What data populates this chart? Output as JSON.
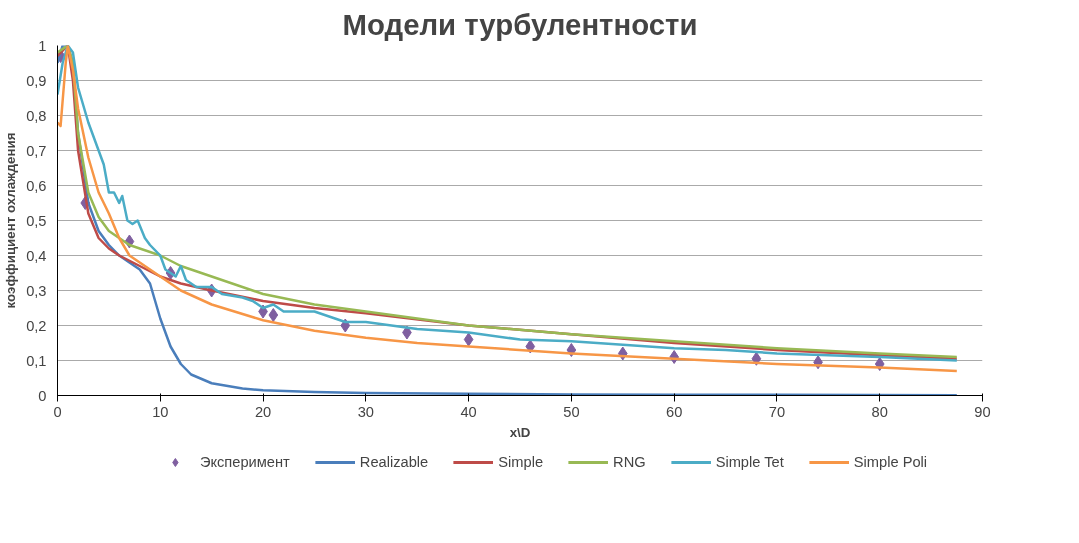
{
  "chart_data": {
    "type": "line",
    "title": "Модели турбулентности",
    "xlabel": "x\\D",
    "ylabel": "коэффициент охлаждения",
    "xlim": [
      0,
      90
    ],
    "xticks": [
      0,
      10,
      20,
      30,
      40,
      50,
      60,
      70,
      80,
      90
    ],
    "ylim": [
      0,
      1
    ],
    "yticks": [
      0,
      {
        "value": 0.1,
        "label": "0,1"
      },
      {
        "value": 0.2,
        "label": "0,2"
      },
      {
        "value": 0.3,
        "label": "0,3"
      },
      {
        "value": 0.4,
        "label": "0,4"
      },
      {
        "value": 0.5,
        "label": "0,5"
      },
      {
        "value": 0.6,
        "label": "0,6"
      },
      {
        "value": 0.7,
        "label": "0,7"
      },
      {
        "value": 0.8,
        "label": "0,8"
      },
      {
        "value": 0.9,
        "label": "0,9"
      },
      1
    ],
    "grid": "y",
    "legend": "bottom",
    "series": [
      {
        "name": "Эксперимент",
        "type": "scatter",
        "marker": "diamond",
        "color": "#7f5fa0",
        "x": [
          0.3,
          2.7,
          7,
          11,
          15,
          20,
          21,
          28,
          34,
          40,
          46,
          50,
          55,
          60,
          68,
          74,
          80
        ],
        "values": [
          0.97,
          0.55,
          0.44,
          0.35,
          0.3,
          0.24,
          0.23,
          0.2,
          0.18,
          0.16,
          0.14,
          0.13,
          0.12,
          0.11,
          0.105,
          0.095,
          0.09
        ]
      },
      {
        "name": "Realizable",
        "type": "line",
        "color": "#4a7ebb",
        "x": [
          0,
          0.5,
          1,
          1.5,
          2,
          3,
          4,
          5,
          6,
          7,
          8,
          9,
          10,
          11,
          12,
          13,
          15,
          18,
          20,
          25,
          30,
          40,
          50,
          60,
          70,
          87.5
        ],
        "values": [
          0.95,
          1,
          1,
          0.95,
          0.75,
          0.55,
          0.47,
          0.43,
          0.4,
          0.38,
          0.36,
          0.32,
          0.22,
          0.14,
          0.09,
          0.06,
          0.035,
          0.02,
          0.015,
          0.01,
          0.007,
          0.005,
          0.003,
          0.002,
          0.002,
          0.001
        ]
      },
      {
        "name": "Simple",
        "type": "line",
        "color": "#be4b48",
        "x": [
          0,
          1,
          1.5,
          2,
          3,
          4,
          5,
          6,
          8,
          10,
          12,
          15,
          20,
          25,
          30,
          40,
          50,
          60,
          70,
          80,
          87.5
        ],
        "values": [
          0.97,
          1,
          0.9,
          0.7,
          0.52,
          0.45,
          0.42,
          0.4,
          0.37,
          0.34,
          0.32,
          0.3,
          0.27,
          0.25,
          0.235,
          0.2,
          0.175,
          0.15,
          0.13,
          0.115,
          0.105
        ]
      },
      {
        "name": "RNG",
        "type": "line",
        "color": "#98b954",
        "x": [
          0,
          1,
          1.5,
          2,
          3,
          4,
          5,
          7,
          10,
          12,
          15,
          20,
          25,
          30,
          40,
          50,
          60,
          70,
          80,
          87.5
        ],
        "values": [
          0.98,
          1,
          0.95,
          0.75,
          0.58,
          0.51,
          0.47,
          0.43,
          0.4,
          0.37,
          0.34,
          0.29,
          0.26,
          0.24,
          0.2,
          0.175,
          0.155,
          0.135,
          0.12,
          0.11
        ]
      },
      {
        "name": "Simple Tet",
        "type": "line",
        "color": "#4bacc6",
        "x": [
          0,
          0.5,
          1,
          1.5,
          2,
          3,
          4,
          4.5,
          5,
          5.5,
          6,
          6.3,
          6.8,
          7.3,
          7.8,
          8.5,
          9,
          10,
          10.5,
          11.5,
          12,
          12.5,
          13.5,
          15,
          16,
          18,
          19,
          20,
          21,
          22,
          25,
          27,
          28,
          30,
          35,
          40,
          45,
          50,
          55,
          60,
          65,
          70,
          80,
          87.5
        ],
        "values": [
          0.86,
          0.95,
          1,
          0.98,
          0.88,
          0.78,
          0.7,
          0.66,
          0.58,
          0.58,
          0.55,
          0.57,
          0.5,
          0.49,
          0.5,
          0.45,
          0.43,
          0.4,
          0.36,
          0.34,
          0.37,
          0.33,
          0.31,
          0.31,
          0.29,
          0.28,
          0.27,
          0.25,
          0.26,
          0.24,
          0.24,
          0.22,
          0.21,
          0.21,
          0.19,
          0.18,
          0.16,
          0.155,
          0.145,
          0.135,
          0.13,
          0.12,
          0.11,
          0.1
        ]
      },
      {
        "name": "Simple Poli",
        "type": "line",
        "color": "#f79646",
        "x": [
          0,
          0.3,
          0.8,
          1,
          1.5,
          2,
          3,
          4,
          5,
          6,
          7,
          8,
          10,
          12,
          15,
          20,
          25,
          30,
          35,
          40,
          50,
          60,
          70,
          80,
          87.5
        ],
        "values": [
          0.78,
          0.77,
          0.95,
          1,
          0.93,
          0.82,
          0.68,
          0.58,
          0.52,
          0.45,
          0.4,
          0.38,
          0.34,
          0.3,
          0.26,
          0.215,
          0.185,
          0.165,
          0.15,
          0.14,
          0.12,
          0.105,
          0.09,
          0.08,
          0.07
        ]
      }
    ]
  }
}
